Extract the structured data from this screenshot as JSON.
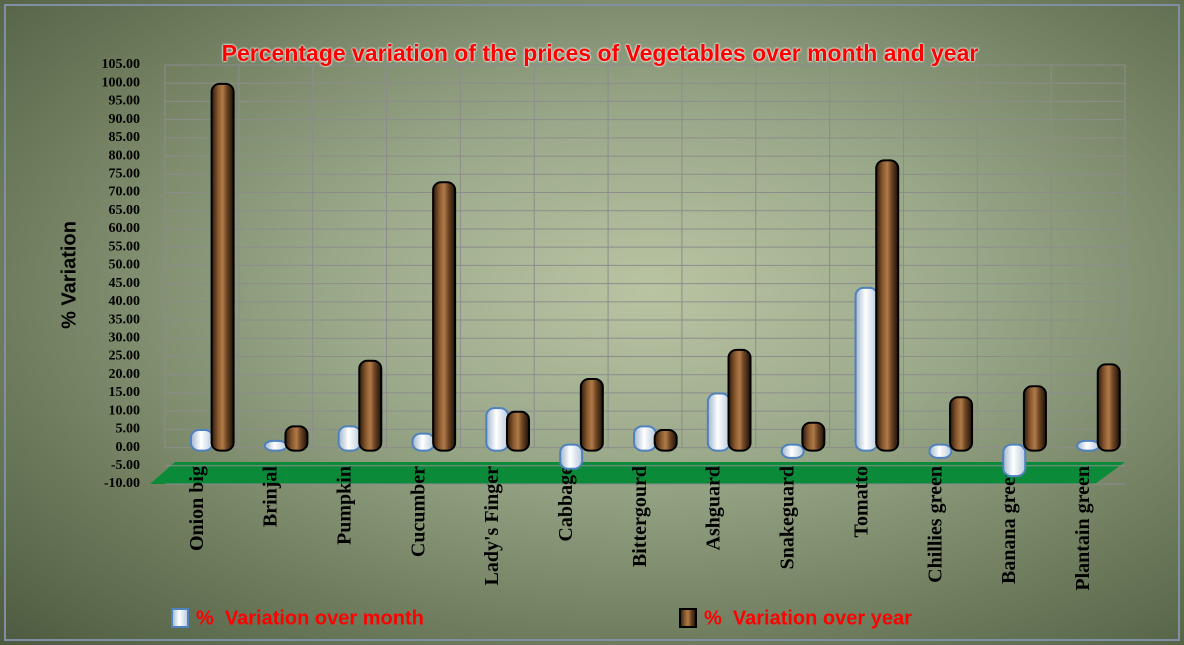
{
  "chart_data": {
    "type": "bar3d",
    "title": "Percentage variation of the prices of Vegetables over month and year",
    "y_label": "% Variation",
    "categories": [
      "Onion big",
      "Brinjal",
      "Pumpkin",
      "Cucumber",
      "Lady's Finger",
      "Cabbage",
      "Bittergourd",
      "Ashguard",
      "Snakeguard",
      "Tomatto",
      "Chillies green",
      "Banana green",
      "Plantain green"
    ],
    "series": [
      {
        "name": "%  Variation over month",
        "color": "#dce6f2",
        "values": [
          4,
          1,
          5,
          3,
          10,
          -5,
          5,
          14,
          -2,
          43,
          -2,
          -7,
          1
        ]
      },
      {
        "name": "%  Variation over year",
        "color": "#6b4423",
        "values": [
          99,
          5,
          23,
          72,
          9,
          18,
          4,
          26,
          6,
          78,
          13,
          16,
          22
        ]
      }
    ],
    "ylim": [
      -10,
      105
    ],
    "yticks": [
      {
        "value": -10,
        "label": "-10.00"
      },
      {
        "value": -5,
        "label": "-5.00"
      },
      {
        "value": 0,
        "label": "0.00"
      },
      {
        "value": 5,
        "label": "5.00"
      },
      {
        "value": 10,
        "label": "10.00"
      },
      {
        "value": 15,
        "label": "15.00"
      },
      {
        "value": 20,
        "label": "20.00"
      },
      {
        "value": 25,
        "label": "25.00"
      },
      {
        "value": 30,
        "label": "30.00"
      },
      {
        "value": 35,
        "label": "35.00"
      },
      {
        "value": 40,
        "label": "40.00"
      },
      {
        "value": 45,
        "label": "45.00"
      },
      {
        "value": 50,
        "label": "50.00"
      },
      {
        "value": 55,
        "label": "55.00"
      },
      {
        "value": 60,
        "label": "60.00"
      },
      {
        "value": 65,
        "label": "65.00"
      },
      {
        "value": 70,
        "label": "70.00"
      },
      {
        "value": 75,
        "label": "75.00"
      },
      {
        "value": 80,
        "label": "80.00"
      },
      {
        "value": 85,
        "label": "85.00"
      },
      {
        "value": 90,
        "label": "90.00"
      },
      {
        "value": 95,
        "label": "95.00"
      },
      {
        "value": 100,
        "label": "100.00"
      },
      {
        "value": 105,
        "label": "105.00"
      }
    ],
    "grid": true
  }
}
